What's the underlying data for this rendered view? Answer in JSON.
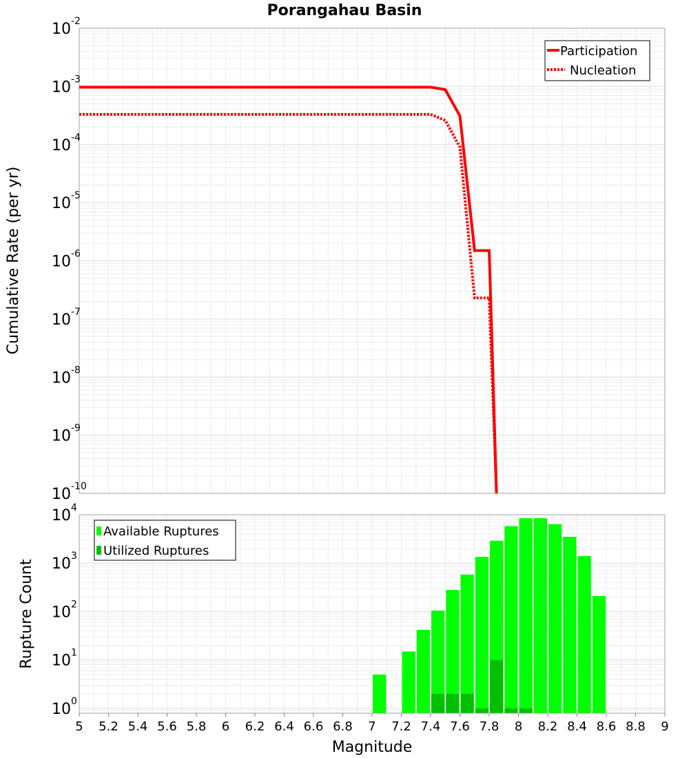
{
  "chart_data": [
    {
      "type": "line",
      "title": "Porangahau Basin",
      "xlabel": "Magnitude",
      "ylabel": "Cumulative Rate (per yr)",
      "xlim": [
        5,
        9
      ],
      "ylim_log10": [
        -10,
        -2
      ],
      "y_tick_exponents": [
        -2,
        -3,
        -4,
        -5,
        -6,
        -7,
        -8,
        -9,
        -10
      ],
      "y_tick_base": "10",
      "legend_position": "top-right",
      "series": [
        {
          "name": "Participation",
          "style": "solid",
          "color": "#ff0000",
          "x": [
            5.0,
            7.4,
            7.5,
            7.6,
            7.7,
            7.8,
            7.85
          ],
          "y": [
            0.00097,
            0.00097,
            0.00088,
            0.00031,
            1.5e-06,
            1.5e-06,
            1e-10
          ]
        },
        {
          "name": "Nucleation",
          "style": "dotted",
          "color": "#ff0000",
          "x": [
            5.0,
            7.4,
            7.5,
            7.6,
            7.7,
            7.8,
            7.85
          ],
          "y": [
            0.00033,
            0.00033,
            0.00026,
            9e-05,
            2.3e-07,
            2.3e-07,
            1e-10
          ]
        }
      ]
    },
    {
      "type": "bar",
      "xlabel": "Magnitude",
      "ylabel": "Rupture Count",
      "xlim": [
        5,
        9
      ],
      "x_ticks": [
        "5",
        "5.2",
        "5.4",
        "5.6",
        "5.8",
        "6",
        "6.2",
        "6.4",
        "6.6",
        "6.8",
        "7",
        "7.2",
        "7.4",
        "7.6",
        "7.8",
        "8",
        "8.2",
        "8.4",
        "8.6",
        "8.8",
        "9"
      ],
      "ylim_log10": [
        -0.1,
        4
      ],
      "y_tick_exponents": [
        0,
        1,
        2,
        3,
        4
      ],
      "y_tick_base": "10",
      "legend_position": "top-left",
      "bin_width": 0.1,
      "series": [
        {
          "name": "Available Ruptures",
          "color": "#00ff00",
          "x": [
            7.05,
            7.25,
            7.35,
            7.45,
            7.55,
            7.65,
            7.75,
            7.85,
            7.95,
            8.05,
            8.15,
            8.25,
            8.35,
            8.45,
            8.55
          ],
          "values": [
            5,
            15,
            42,
            105,
            280,
            580,
            1350,
            2900,
            5800,
            8500,
            8500,
            6400,
            3500,
            1400,
            210
          ]
        },
        {
          "name": "Utilized Ruptures",
          "color": "#00c000",
          "x": [
            7.45,
            7.55,
            7.65,
            7.75,
            7.85,
            7.95,
            8.05
          ],
          "values": [
            2,
            2,
            2,
            1,
            10,
            1,
            1
          ]
        }
      ]
    }
  ]
}
